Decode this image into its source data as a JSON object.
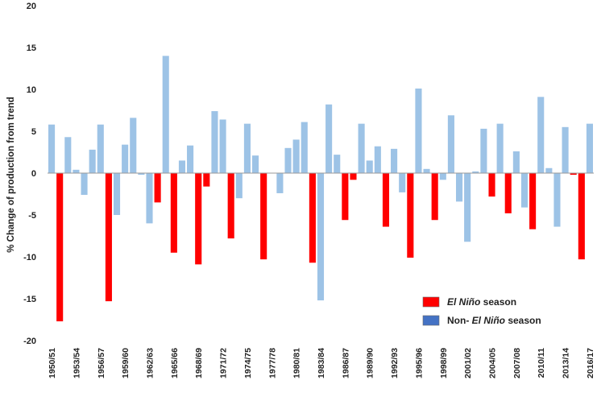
{
  "chart_data": {
    "type": "bar",
    "ylabel": "% Change of production from trend",
    "ylim": [
      -20,
      20
    ],
    "yticks": [
      20,
      15,
      10,
      5,
      0,
      -5,
      -10,
      -15,
      -20
    ],
    "grid": false,
    "legend_placement": "bottom-right",
    "colors": {
      "el_nino": "#ff0000",
      "non_el_nino": "#9dc3e6",
      "non_el_nino_legend": "#4472c4"
    },
    "legend": [
      {
        "key": "el_nino",
        "label_italic": "El Niño",
        "label_rest": " season"
      },
      {
        "key": "non_el_nino",
        "label_prefix": "Non- ",
        "label_italic": "El Niño",
        "label_rest": " season"
      }
    ],
    "categories": [
      "1950/51",
      "1951/52",
      "1952/53",
      "1953/54",
      "1954/55",
      "1955/56",
      "1956/57",
      "1957/58",
      "1958/59",
      "1959/60",
      "1960/61",
      "1961/62",
      "1962/63",
      "1963/64",
      "1964/65",
      "1965/66",
      "1966/67",
      "1967/68",
      "1968/69",
      "1969/70",
      "1970/71",
      "1971/72",
      "1972/73",
      "1973/74",
      "1974/75",
      "1975/76",
      "1976/77",
      "1977/78",
      "1978/79",
      "1979/80",
      "1980/81",
      "1981/82",
      "1982/83",
      "1983/84",
      "1984/85",
      "1985/86",
      "1986/87",
      "1987/88",
      "1988/89",
      "1989/90",
      "1990/91",
      "1991/92",
      "1992/93",
      "1993/94",
      "1994/95",
      "1995/96",
      "1996/97",
      "1997/98",
      "1998/99",
      "1999/00",
      "2000/01",
      "2001/02",
      "2002/03",
      "2003/04",
      "2004/05",
      "2005/06",
      "2006/07",
      "2007/08",
      "2008/09",
      "2009/10",
      "2010/11",
      "2011/12",
      "2012/13",
      "2013/14",
      "2014/15",
      "2015/16",
      "2016/17"
    ],
    "tick_labels": [
      "1950/51",
      "1953/54",
      "1956/57",
      "1959/60",
      "1962/63",
      "1965/66",
      "1968/69",
      "1971/72",
      "1974/75",
      "1977/78",
      "1980/81",
      "1983/84",
      "1986/87",
      "1989/90",
      "1992/93",
      "1995/96",
      "1998/99",
      "2001/02",
      "2004/05",
      "2007/08",
      "2010/11",
      "2013/14",
      "2016/17"
    ],
    "values": [
      5.8,
      -17.7,
      4.3,
      0.4,
      -2.6,
      2.8,
      5.8,
      -15.3,
      -5.0,
      3.4,
      6.6,
      -0.2,
      -6.0,
      -3.5,
      14.0,
      -9.5,
      1.5,
      3.3,
      -10.9,
      -1.6,
      7.4,
      6.4,
      -7.8,
      -3.0,
      5.9,
      2.1,
      -10.3,
      0.0,
      -2.4,
      3.0,
      4.0,
      6.1,
      -10.7,
      -15.2,
      8.2,
      2.2,
      -5.6,
      -0.8,
      5.9,
      1.5,
      3.2,
      -6.4,
      2.9,
      -2.3,
      -10.1,
      10.1,
      0.5,
      -5.6,
      -0.8,
      6.9,
      -3.4,
      -8.2,
      0.2,
      5.3,
      -2.8,
      5.9,
      -4.8,
      2.6,
      -4.1,
      -6.7,
      9.1,
      0.6,
      -6.4,
      5.5,
      -0.2,
      -10.3,
      5.9
    ],
    "el_nino": [
      false,
      true,
      false,
      false,
      false,
      false,
      false,
      true,
      false,
      false,
      false,
      false,
      false,
      true,
      false,
      true,
      false,
      false,
      true,
      true,
      false,
      false,
      true,
      false,
      false,
      false,
      true,
      false,
      false,
      false,
      false,
      false,
      true,
      false,
      false,
      false,
      true,
      true,
      false,
      false,
      false,
      true,
      false,
      false,
      true,
      false,
      false,
      true,
      false,
      false,
      false,
      false,
      false,
      false,
      true,
      false,
      true,
      false,
      false,
      true,
      false,
      false,
      false,
      false,
      true,
      true,
      false
    ]
  }
}
